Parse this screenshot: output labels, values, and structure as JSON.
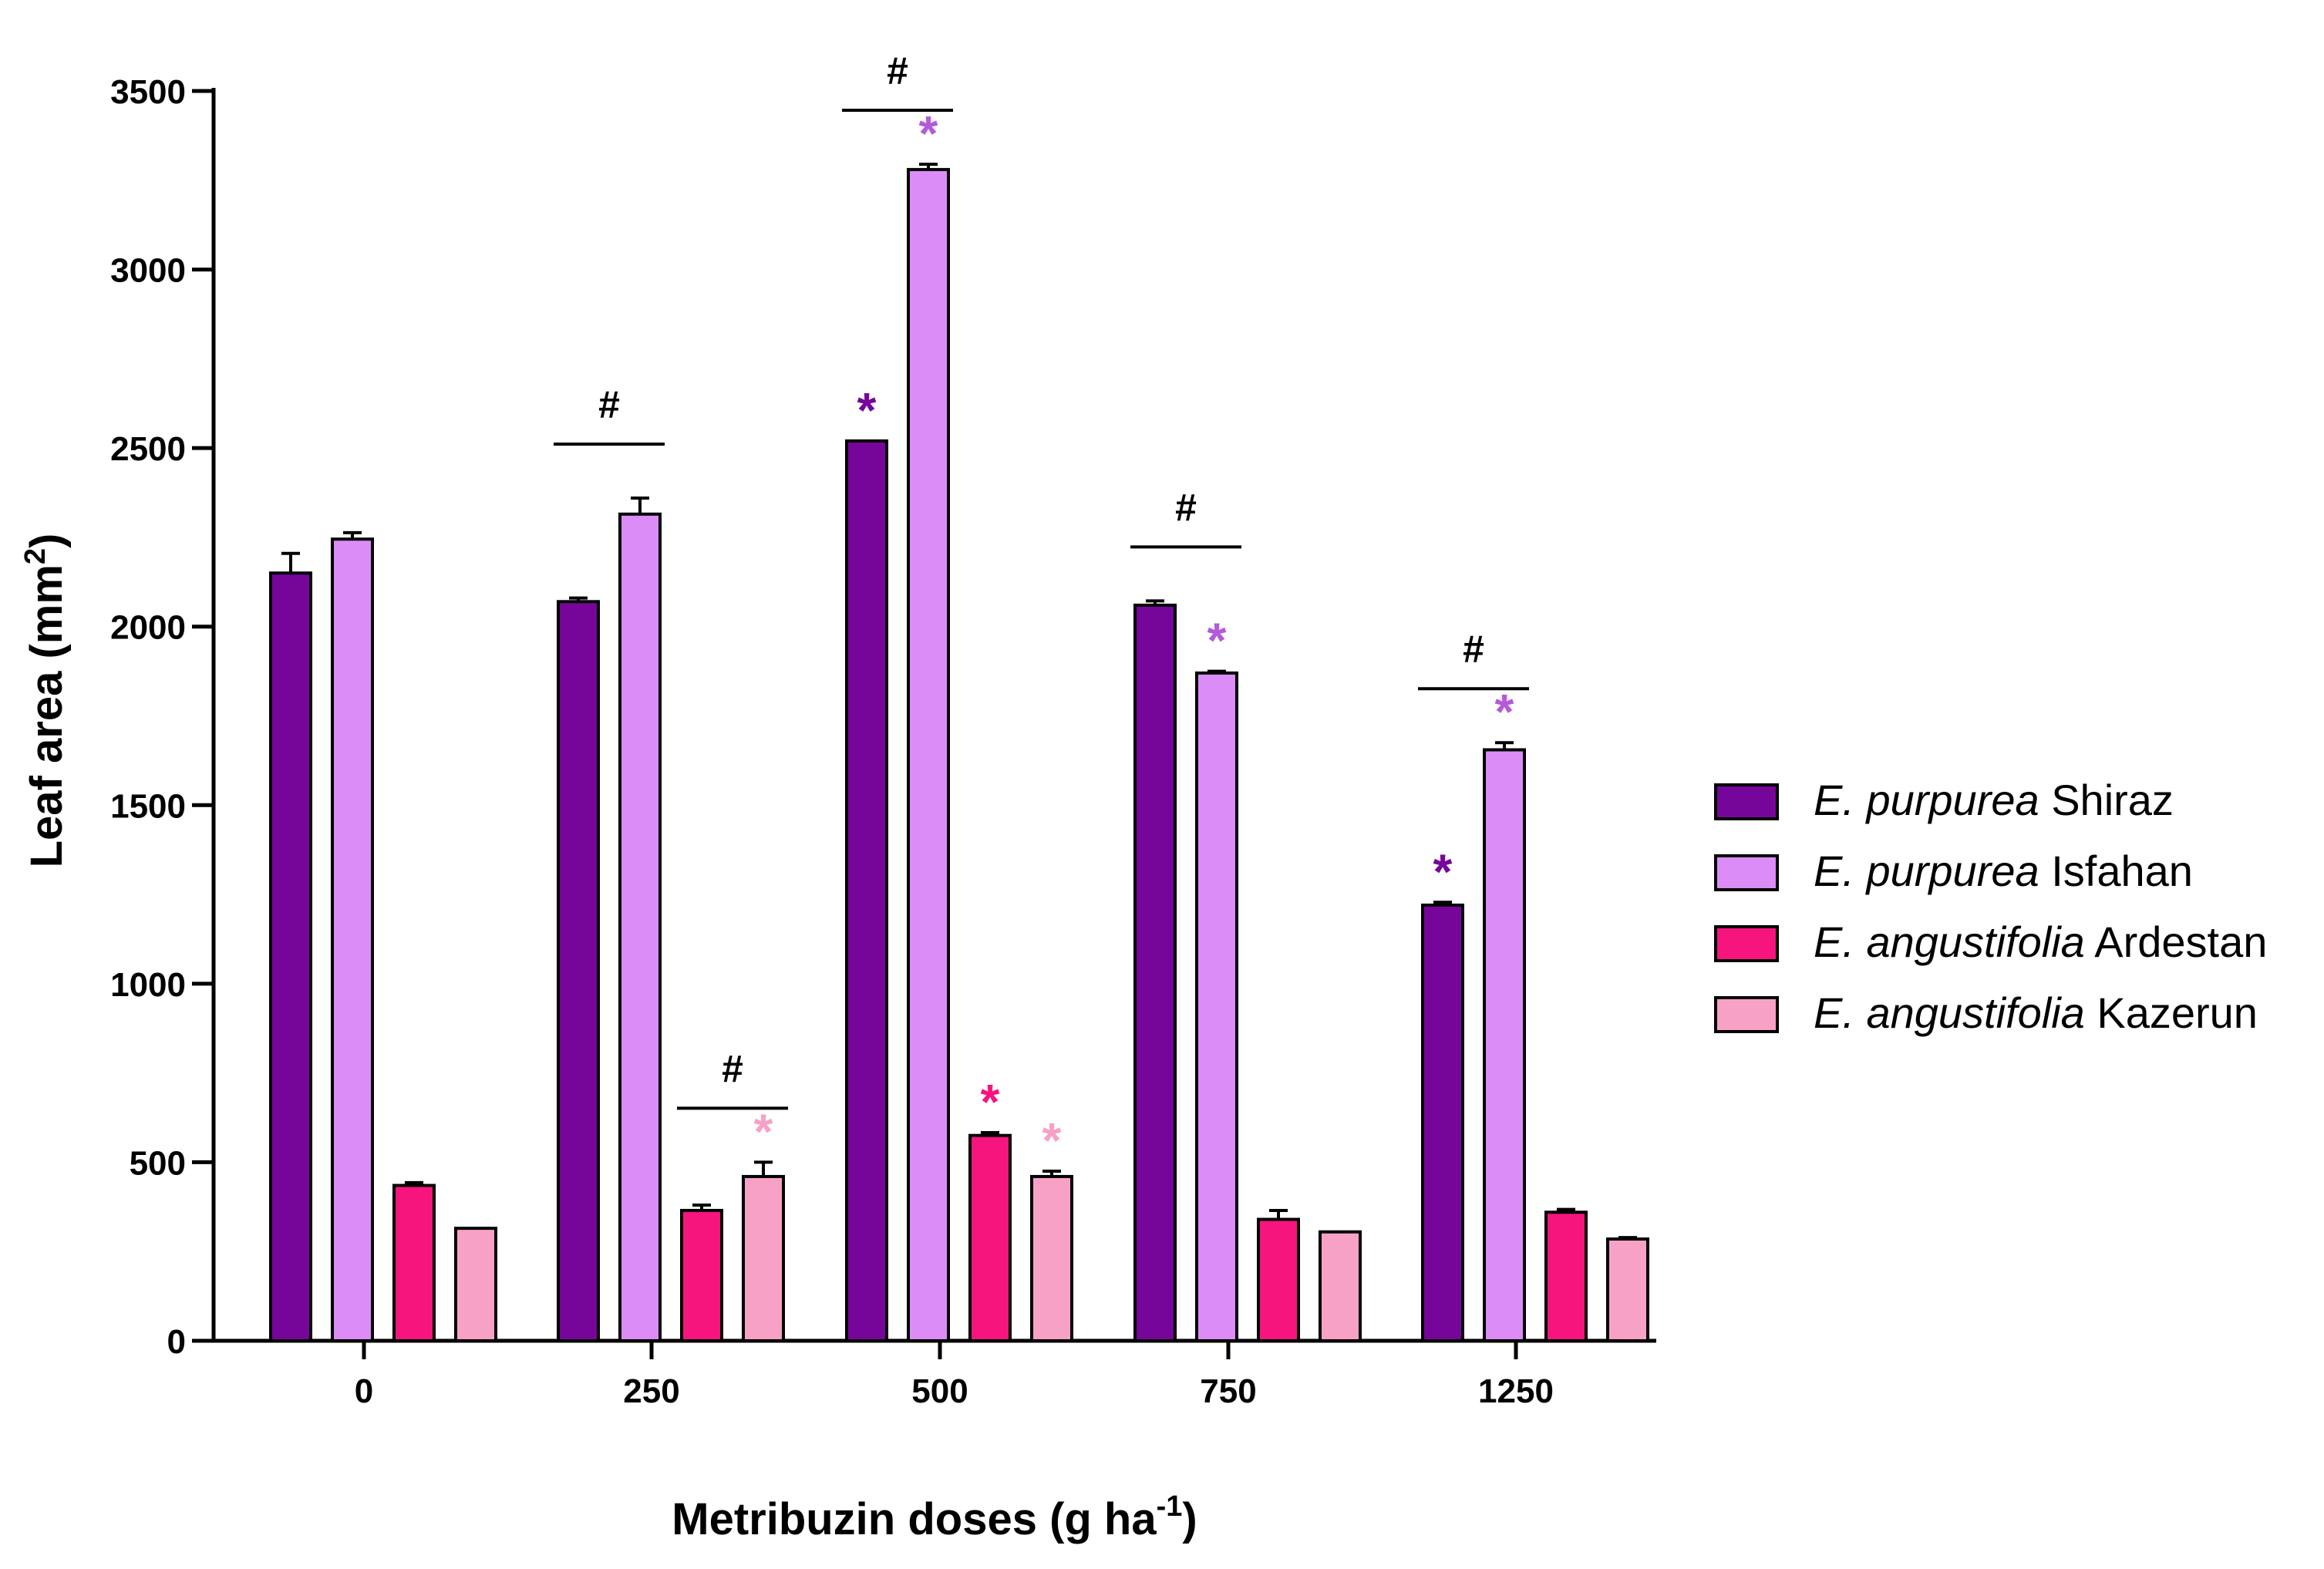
{
  "chart_data": {
    "type": "bar",
    "title": "",
    "ylabel": "Leaf area (mm",
    "ylabel_sup": "2",
    "ylabel_suffix": ")",
    "xlabel": "Metribuzin doses (g ha",
    "xlabel_sup": "-1",
    "xlabel_suffix": ")",
    "ylim": [
      0,
      3500
    ],
    "yticks": [
      0,
      500,
      1000,
      1500,
      2000,
      2500,
      3000,
      3500
    ],
    "categories": [
      "0",
      "250",
      "500",
      "750",
      "1250"
    ],
    "series": [
      {
        "name_italic": "E. purpurea",
        "name_rest": " Shiraz",
        "color": "#76069a",
        "values": [
          2150,
          2070,
          2520,
          2060,
          1220
        ],
        "errors": [
          55,
          10,
          0,
          12,
          8
        ],
        "stars": [
          false,
          false,
          true,
          false,
          true
        ]
      },
      {
        "name_italic": "E. purpurea",
        "name_rest": " Isfahan",
        "color": "#dc8cf6",
        "star_color": "#b45ad8",
        "values": [
          2245,
          2315,
          3280,
          1870,
          1655
        ],
        "errors": [
          18,
          45,
          15,
          5,
          20
        ],
        "stars": [
          false,
          false,
          true,
          true,
          true
        ]
      },
      {
        "name_italic": "E. angustifolia",
        "name_rest": " Ardestan",
        "color": "#f5157d",
        "values": [
          435,
          365,
          575,
          340,
          360
        ],
        "errors": [
          8,
          15,
          8,
          25,
          8
        ],
        "stars": [
          false,
          false,
          true,
          false,
          false
        ]
      },
      {
        "name_italic": "E. angustifolia",
        "name_rest": " Kazerun",
        "color": "#f7a1c7",
        "values": [
          315,
          460,
          460,
          305,
          285
        ],
        "errors": [
          0,
          40,
          15,
          0,
          4
        ],
        "stars": [
          false,
          true,
          true,
          false,
          false
        ]
      }
    ],
    "significance": [
      {
        "category": 1,
        "series": [
          0,
          1
        ],
        "label": "#"
      },
      {
        "category": 1,
        "series": [
          2,
          3
        ],
        "label": "#"
      },
      {
        "category": 2,
        "series": [
          0,
          1
        ],
        "label": "#"
      },
      {
        "category": 3,
        "series": [
          0,
          1
        ],
        "label": "#"
      },
      {
        "category": 4,
        "series": [
          0,
          1
        ],
        "label": "#"
      }
    ],
    "star_symbol": "*",
    "legend_position": "right"
  }
}
